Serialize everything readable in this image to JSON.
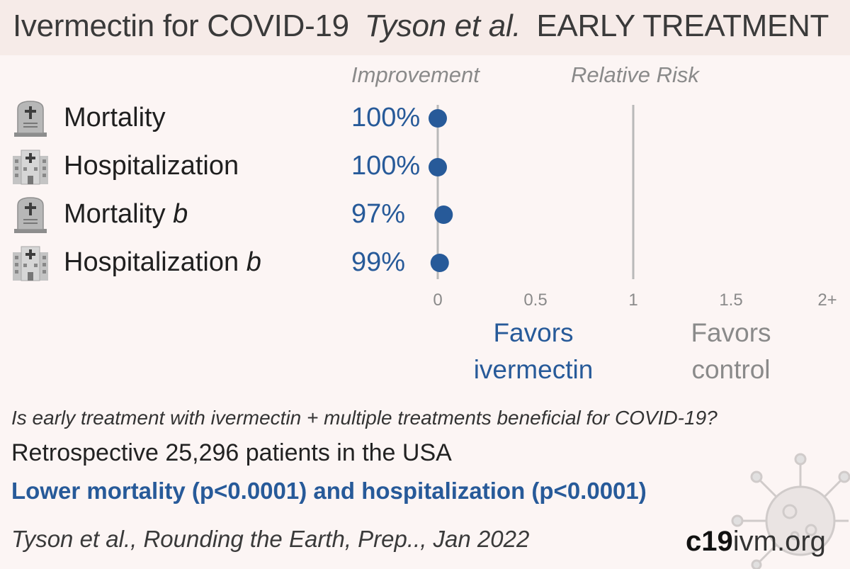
{
  "header": {
    "title": "Ivermectin for COVID-19",
    "authors": "Tyson et al.",
    "tag": "EARLY TREATMENT"
  },
  "columns": {
    "improvement": "Improvement",
    "relative_risk": "Relative Risk"
  },
  "rows": [
    {
      "label": "Mortality",
      "suffix": "",
      "improvement": "100%",
      "icon": "tombstone-icon"
    },
    {
      "label": "Hospitalization",
      "suffix": "",
      "improvement": "100%",
      "icon": "hospital-icon"
    },
    {
      "label": "Mortality ",
      "suffix": "b",
      "improvement": "97%",
      "icon": "tombstone-icon"
    },
    {
      "label": "Hospitalization ",
      "suffix": "b",
      "improvement": "99%",
      "icon": "hospital-icon"
    }
  ],
  "chart_data": {
    "type": "scatter",
    "xlabel": "",
    "ylabel": "",
    "categories": [
      "Mortality",
      "Hospitalization",
      "Mortality b",
      "Hospitalization b"
    ],
    "values": [
      0.0,
      0.0,
      0.03,
      0.01
    ],
    "x_ticks": [
      "0",
      "0.5",
      "1",
      "1.5",
      "2+"
    ],
    "xlim": [
      0,
      2
    ],
    "reference_line": 1,
    "point_color": "#275a99"
  },
  "favors": {
    "intervention": [
      "Favors",
      "ivermectin"
    ],
    "control": [
      "Favors",
      "control"
    ]
  },
  "summary": {
    "question": "Is early treatment with ivermectin + multiple treatments beneficial for COVID-19?",
    "design": "Retrospective 25,296 patients in the USA",
    "conclusion": "Lower mortality (p<0.0001) and hospitalization (p<0.0001)",
    "citation": "Tyson et al., Rounding the Earth, Prep.., Jan 2022"
  },
  "brand": {
    "part1": "c19",
    "part2": "ivm.org"
  },
  "colors": {
    "accent": "#275a99",
    "muted": "#8a8a8a",
    "background": "#fcf5f4",
    "header": "#f6ebe8"
  }
}
